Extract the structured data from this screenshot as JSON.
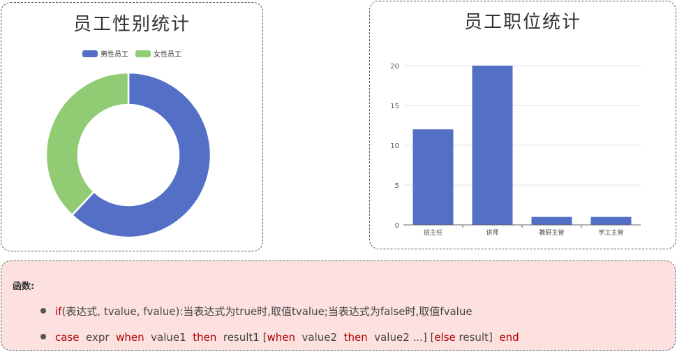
{
  "gender_card": {
    "title": "员工性别统计"
  },
  "position_card": {
    "title": "员工职位统计"
  },
  "chart_data": [
    {
      "type": "pie",
      "title": "员工性别统计",
      "legend": "top",
      "categories": [
        "男性员工",
        "女性员工"
      ],
      "values": [
        62,
        38
      ],
      "colors": [
        "#5470c6",
        "#91cc75"
      ]
    },
    {
      "type": "bar",
      "title": "员工职位统计",
      "categories": [
        "班主任",
        "讲师",
        "教研主管",
        "学工主管"
      ],
      "values": [
        12,
        20,
        1,
        1
      ],
      "yticks": [
        0,
        5,
        10,
        15,
        20
      ],
      "ylim": [
        0,
        22
      ],
      "grid": true,
      "colors": [
        "#5470c6"
      ]
    }
  ],
  "functions_panel": {
    "heading": "函数:",
    "if_line": {
      "keyword": "if",
      "text": "(表达式, tvalue, fvalue):当表达式为true时,取值tvalue;当表达式为false时,取值fvalue"
    },
    "case_line": [
      {
        "t": "case",
        "kw": true
      },
      {
        "t": "  expr  ",
        "kw": false
      },
      {
        "t": "when",
        "kw": true
      },
      {
        "t": "  value1  ",
        "kw": false
      },
      {
        "t": "then",
        "kw": true
      },
      {
        "t": "  result1 [",
        "kw": false
      },
      {
        "t": "when",
        "kw": true
      },
      {
        "t": "  value2  ",
        "kw": false
      },
      {
        "t": "then",
        "kw": true
      },
      {
        "t": "  value2 ...] [",
        "kw": false
      },
      {
        "t": "else",
        "kw": true
      },
      {
        "t": " result]  ",
        "kw": false
      },
      {
        "t": "end",
        "kw": true
      }
    ]
  }
}
